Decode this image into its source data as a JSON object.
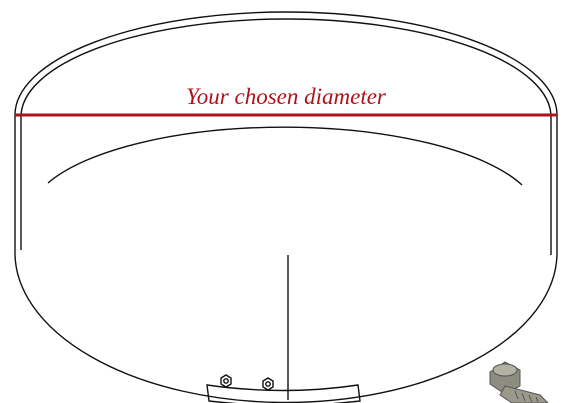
{
  "label": "Your chosen diameter"
}
